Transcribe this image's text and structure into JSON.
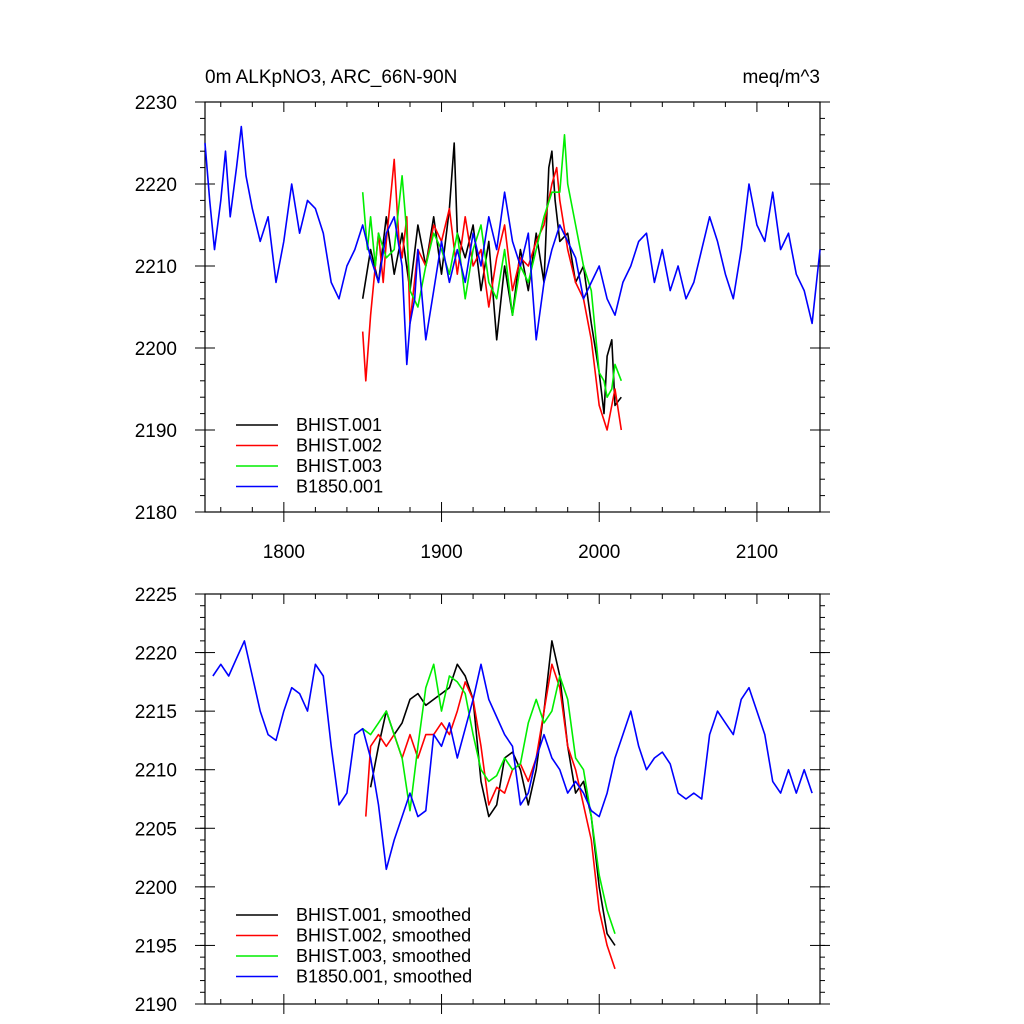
{
  "chart_data": [
    {
      "type": "line",
      "title": "0m ALKpNO3, ARC_66N-90N",
      "units": "meq/m^3",
      "xlabel": "",
      "ylabel": "",
      "xlim": [
        1750,
        2140
      ],
      "ylim": [
        2180,
        2230
      ],
      "x_ticks": [
        1800,
        1900,
        2000,
        2100
      ],
      "x_tick_labels": [
        "1800",
        "1900",
        "2000",
        "2100"
      ],
      "y_ticks": [
        2180,
        2190,
        2200,
        2210,
        2220,
        2230
      ],
      "y_tick_labels": [
        "2180",
        "2190",
        "2200",
        "2210",
        "2220",
        "2230"
      ],
      "show_x_tick_labels": true,
      "legend_position": "bottom-left",
      "series": [
        {
          "name": "BHIST.001",
          "color": "#000000",
          "x": [
            1850,
            1855,
            1860,
            1865,
            1870,
            1875,
            1880,
            1885,
            1890,
            1895,
            1900,
            1905,
            1908,
            1910,
            1915,
            1920,
            1925,
            1930,
            1935,
            1940,
            1945,
            1950,
            1955,
            1960,
            1965,
            1968,
            1970,
            1972,
            1975,
            1980,
            1985,
            1990,
            1995,
            2000,
            2003,
            2005,
            2008,
            2010,
            2014
          ],
          "y": [
            2206,
            2212,
            2208,
            2216,
            2209,
            2214,
            2207,
            2215,
            2210,
            2216,
            2209,
            2217,
            2225,
            2214,
            2211,
            2215,
            2207,
            2213,
            2201,
            2210,
            2204,
            2212,
            2207,
            2214,
            2208,
            2222,
            2224,
            2218,
            2213,
            2214,
            2208,
            2210,
            2203,
            2197,
            2192,
            2199,
            2201,
            2193,
            2194
          ]
        },
        {
          "name": "BHIST.002",
          "color": "#ff0000",
          "x": [
            1850,
            1852,
            1855,
            1858,
            1860,
            1863,
            1865,
            1868,
            1870,
            1873,
            1875,
            1878,
            1880,
            1885,
            1890,
            1895,
            1900,
            1905,
            1910,
            1915,
            1920,
            1925,
            1930,
            1935,
            1940,
            1945,
            1950,
            1955,
            1960,
            1965,
            1970,
            1973,
            1975,
            1980,
            1985,
            1990,
            1995,
            2000,
            2005,
            2008,
            2010,
            2014
          ],
          "y": [
            2202,
            2196,
            2204,
            2210,
            2214,
            2208,
            2213,
            2219,
            2223,
            2213,
            2211,
            2216,
            2203,
            2212,
            2210,
            2215,
            2213,
            2217,
            2209,
            2216,
            2210,
            2212,
            2205,
            2211,
            2215,
            2207,
            2211,
            2210,
            2213,
            2215,
            2220,
            2222,
            2218,
            2212,
            2208,
            2206,
            2201,
            2193,
            2190,
            2193,
            2195,
            2190
          ]
        },
        {
          "name": "BHIST.003",
          "color": "#00ee00",
          "x": [
            1850,
            1853,
            1855,
            1858,
            1860,
            1865,
            1870,
            1875,
            1878,
            1880,
            1885,
            1890,
            1895,
            1900,
            1905,
            1910,
            1915,
            1920,
            1925,
            1930,
            1935,
            1940,
            1945,
            1950,
            1955,
            1960,
            1965,
            1970,
            1975,
            1978,
            1980,
            1985,
            1990,
            1995,
            2000,
            2003,
            2005,
            2008,
            2010,
            2014
          ],
          "y": [
            2219,
            2212,
            2216,
            2210,
            2214,
            2211,
            2212,
            2221,
            2214,
            2207,
            2205,
            2210,
            2214,
            2212,
            2209,
            2214,
            2206,
            2212,
            2215,
            2208,
            2206,
            2212,
            2204,
            2210,
            2208,
            2212,
            2216,
            2219,
            2219,
            2226,
            2220,
            2215,
            2210,
            2207,
            2197,
            2196,
            2194,
            2195,
            2198,
            2196
          ]
        },
        {
          "name": "B1850.001",
          "color": "#0000ff",
          "x": [
            1750,
            1753,
            1756,
            1760,
            1763,
            1766,
            1770,
            1773,
            1776,
            1780,
            1785,
            1790,
            1795,
            1800,
            1805,
            1810,
            1815,
            1820,
            1825,
            1830,
            1835,
            1840,
            1845,
            1850,
            1855,
            1860,
            1865,
            1870,
            1875,
            1878,
            1880,
            1883,
            1885,
            1890,
            1895,
            1900,
            1905,
            1910,
            1915,
            1920,
            1925,
            1930,
            1935,
            1940,
            1945,
            1950,
            1955,
            1960,
            1965,
            1970,
            1975,
            1980,
            1985,
            1990,
            1995,
            2000,
            2005,
            2010,
            2015,
            2020,
            2025,
            2030,
            2035,
            2040,
            2045,
            2050,
            2055,
            2060,
            2065,
            2070,
            2075,
            2080,
            2085,
            2090,
            2095,
            2100,
            2105,
            2110,
            2115,
            2120,
            2125,
            2130,
            2135,
            2140
          ],
          "y": [
            2225,
            2218,
            2212,
            2218,
            2224,
            2216,
            2222,
            2227,
            2221,
            2217,
            2213,
            2216,
            2208,
            2213,
            2220,
            2214,
            2218,
            2217,
            2214,
            2208,
            2206,
            2210,
            2212,
            2215,
            2211,
            2208,
            2214,
            2216,
            2210,
            2198,
            2203,
            2206,
            2212,
            2201,
            2207,
            2213,
            2208,
            2212,
            2208,
            2214,
            2210,
            2216,
            2212,
            2219,
            2213,
            2210,
            2214,
            2201,
            2208,
            2212,
            2215,
            2213,
            2211,
            2206,
            2208,
            2210,
            2206,
            2204,
            2208,
            2210,
            2213,
            2214,
            2208,
            2212,
            2207,
            2210,
            2206,
            2208,
            2212,
            2216,
            2213,
            2209,
            2206,
            2212,
            2220,
            2215,
            2213,
            2219,
            2212,
            2214,
            2209,
            2207,
            2203,
            2212
          ]
        }
      ]
    },
    {
      "type": "line",
      "title": "",
      "xlabel": "",
      "ylabel": "",
      "xlim": [
        1750,
        2140
      ],
      "ylim": [
        2190,
        2225
      ],
      "x_ticks": [
        1800,
        1900,
        2000,
        2100
      ],
      "x_tick_labels": [],
      "y_ticks": [
        2190,
        2195,
        2200,
        2205,
        2210,
        2215,
        2220,
        2225
      ],
      "y_tick_labels": [
        "2190",
        "2195",
        "2200",
        "2205",
        "2210",
        "2215",
        "2220",
        "2225"
      ],
      "show_x_tick_labels": false,
      "legend_position": "bottom-left",
      "series": [
        {
          "name": "BHIST.001, smoothed",
          "color": "#000000",
          "x": [
            1855,
            1860,
            1865,
            1870,
            1875,
            1880,
            1885,
            1890,
            1895,
            1900,
            1905,
            1910,
            1915,
            1920,
            1925,
            1930,
            1935,
            1940,
            1945,
            1950,
            1955,
            1960,
            1965,
            1970,
            1975,
            1980,
            1985,
            1990,
            1995,
            2000,
            2005,
            2010
          ],
          "y": [
            2208.5,
            2212,
            2215,
            2213,
            2214,
            2216,
            2216.5,
            2215.5,
            2216,
            2216.5,
            2217,
            2219,
            2218,
            2216,
            2209,
            2206,
            2207,
            2211,
            2211.5,
            2210,
            2207,
            2210,
            2215,
            2221,
            2218,
            2212,
            2208,
            2209,
            2206,
            2200,
            2196,
            2195
          ]
        },
        {
          "name": "BHIST.002, smoothed",
          "color": "#ff0000",
          "x": [
            1852,
            1855,
            1860,
            1865,
            1870,
            1875,
            1880,
            1885,
            1890,
            1895,
            1900,
            1905,
            1910,
            1915,
            1920,
            1925,
            1930,
            1935,
            1940,
            1945,
            1950,
            1955,
            1960,
            1965,
            1970,
            1975,
            1980,
            1985,
            1990,
            1995,
            2000,
            2005,
            2010
          ],
          "y": [
            2206,
            2212,
            2213,
            2212,
            2213,
            2211,
            2213,
            2211,
            2213,
            2213,
            2214,
            2213,
            2215,
            2217.5,
            2216,
            2212,
            2207,
            2208.5,
            2208,
            2210,
            2210.5,
            2209,
            2211,
            2215,
            2219,
            2217,
            2212,
            2210,
            2207,
            2204,
            2198,
            2195,
            2193
          ]
        },
        {
          "name": "BHIST.003, smoothed",
          "color": "#00ee00",
          "x": [
            1850,
            1855,
            1860,
            1865,
            1870,
            1875,
            1880,
            1885,
            1890,
            1895,
            1900,
            1905,
            1910,
            1915,
            1920,
            1925,
            1930,
            1935,
            1940,
            1945,
            1950,
            1955,
            1960,
            1965,
            1970,
            1975,
            1980,
            1985,
            1990,
            1995,
            2000,
            2005,
            2010
          ],
          "y": [
            2213.5,
            2213,
            2214,
            2215,
            2213,
            2211,
            2206.5,
            2212,
            2217,
            2219,
            2215,
            2218,
            2217.5,
            2216.5,
            2213,
            2210,
            2209,
            2209.5,
            2211,
            2210,
            2210.5,
            2214,
            2216,
            2214,
            2215,
            2218,
            2216,
            2211,
            2210,
            2206,
            2201,
            2198,
            2196
          ]
        },
        {
          "name": "B1850.001, smoothed",
          "color": "#0000ff",
          "x": [
            1755,
            1760,
            1765,
            1770,
            1775,
            1780,
            1785,
            1790,
            1795,
            1800,
            1805,
            1810,
            1815,
            1820,
            1825,
            1830,
            1835,
            1840,
            1845,
            1850,
            1855,
            1860,
            1865,
            1870,
            1875,
            1880,
            1885,
            1890,
            1895,
            1900,
            1905,
            1910,
            1915,
            1920,
            1925,
            1930,
            1935,
            1940,
            1945,
            1950,
            1955,
            1960,
            1965,
            1970,
            1975,
            1980,
            1985,
            1990,
            1995,
            2000,
            2005,
            2010,
            2015,
            2020,
            2025,
            2030,
            2035,
            2040,
            2045,
            2050,
            2055,
            2060,
            2065,
            2070,
            2075,
            2080,
            2085,
            2090,
            2095,
            2100,
            2105,
            2110,
            2115,
            2120,
            2125,
            2130,
            2135
          ],
          "y": [
            2218,
            2219,
            2218,
            2219.5,
            2221,
            2218,
            2215,
            2213,
            2212.5,
            2215,
            2217,
            2216.5,
            2215,
            2219,
            2218,
            2212,
            2207,
            2208,
            2213,
            2213.5,
            2211,
            2207,
            2201.5,
            2204,
            2206,
            2208,
            2206,
            2206.5,
            2213,
            2212,
            2214,
            2211,
            2213.5,
            2216,
            2219,
            2216,
            2214.5,
            2213,
            2212,
            2207,
            2208,
            2211,
            2213,
            2211,
            2210,
            2208,
            2209,
            2208,
            2206.5,
            2206,
            2208,
            2211,
            2213,
            2215,
            2212,
            2210,
            2211,
            2211.5,
            2210.5,
            2208,
            2207.5,
            2208,
            2207.5,
            2213,
            2215,
            2214,
            2213,
            2216,
            2217,
            2215,
            2213,
            2209,
            2208,
            2210,
            2208,
            2210,
            2208
          ]
        }
      ]
    }
  ]
}
